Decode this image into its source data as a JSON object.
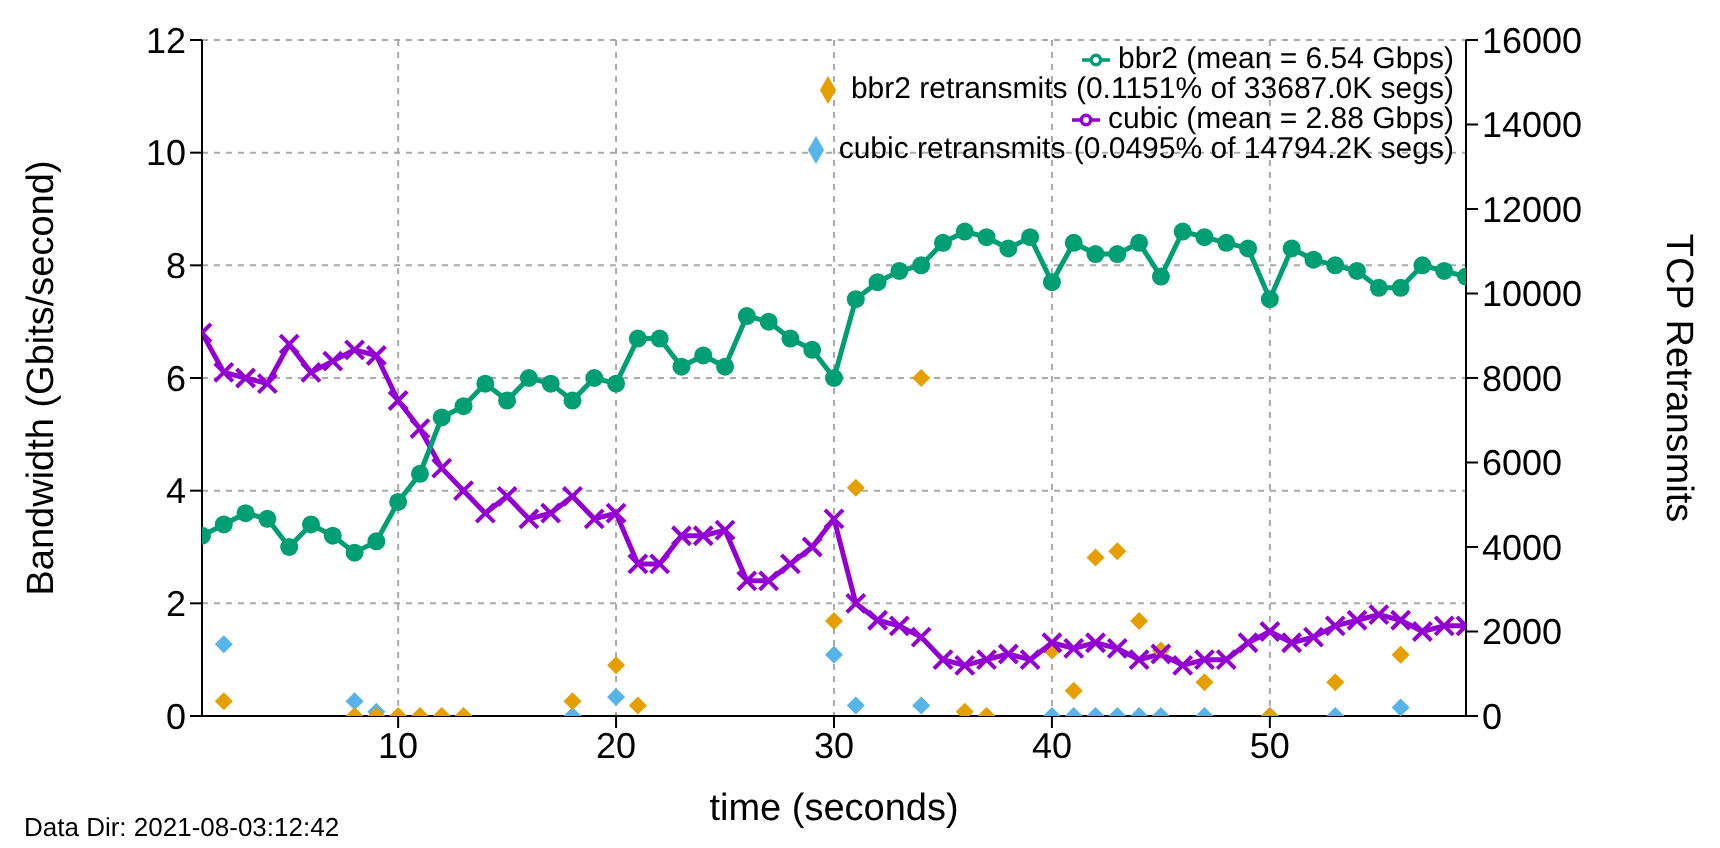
{
  "chart_data": {
    "type": "line",
    "xlabel": "time (seconds)",
    "ylabel": "Bandwidth (Gbits/second)",
    "y2label": "TCP Retransmits",
    "x": [
      1,
      2,
      3,
      4,
      5,
      6,
      7,
      8,
      9,
      10,
      11,
      12,
      13,
      14,
      15,
      16,
      17,
      18,
      19,
      20,
      21,
      22,
      23,
      24,
      25,
      26,
      27,
      28,
      29,
      30,
      31,
      32,
      33,
      34,
      35,
      36,
      37,
      38,
      39,
      40,
      41,
      42,
      43,
      44,
      45,
      46,
      47,
      48,
      49,
      50,
      51,
      52,
      53,
      54,
      55,
      56,
      57,
      58,
      59
    ],
    "series": [
      {
        "name": "cubic (mean = 2.88 Gbps)",
        "color": "#9400d3",
        "marker": "cross",
        "values": [
          6.8,
          6.1,
          6.0,
          5.9,
          6.6,
          6.1,
          6.3,
          6.5,
          6.4,
          5.6,
          5.1,
          4.4,
          4.0,
          3.6,
          3.9,
          3.5,
          3.6,
          3.9,
          3.5,
          3.6,
          2.7,
          2.7,
          3.2,
          3.2,
          3.3,
          2.4,
          2.4,
          2.7,
          3.0,
          3.5,
          2.0,
          1.7,
          1.6,
          1.4,
          1.0,
          0.9,
          1.0,
          1.1,
          1.0,
          1.3,
          1.2,
          1.3,
          1.2,
          1.0,
          1.1,
          0.9,
          1.0,
          1.0,
          1.3,
          1.5,
          1.3,
          1.4,
          1.6,
          1.7,
          1.8,
          1.7,
          1.5,
          1.6,
          1.6
        ]
      },
      {
        "name": "bbr2 (mean = 6.54 Gbps)",
        "color": "#009e73",
        "marker": "circle",
        "values": [
          3.2,
          3.4,
          3.6,
          3.5,
          3.0,
          3.4,
          3.2,
          2.9,
          3.1,
          3.8,
          4.3,
          5.3,
          5.5,
          5.9,
          5.6,
          6.0,
          5.9,
          5.6,
          6.0,
          5.9,
          6.7,
          6.7,
          6.2,
          6.4,
          6.2,
          7.1,
          7.0,
          6.7,
          6.5,
          6.0,
          7.4,
          7.7,
          7.9,
          8.0,
          8.4,
          8.6,
          8.5,
          8.3,
          8.5,
          7.7,
          8.4,
          8.2,
          8.2,
          8.4,
          7.8,
          8.6,
          8.5,
          8.4,
          8.3,
          7.4,
          8.3,
          8.1,
          8.0,
          7.9,
          7.6,
          7.6,
          8.0,
          7.9,
          7.8
        ]
      },
      {
        "name": "cubic retransmits (0.0495% of 14794.2K segs)",
        "type": "scatter",
        "axis": "y2",
        "color": "#56b4e9",
        "marker": "diamond",
        "x": [
          2,
          8,
          9,
          18,
          20,
          30,
          31,
          34,
          40,
          41,
          42,
          43,
          44,
          45,
          47,
          50,
          53,
          56
        ],
        "values": [
          1700,
          350,
          100,
          0,
          450,
          1450,
          250,
          250,
          0,
          0,
          0,
          0,
          0,
          0,
          0,
          0,
          0,
          200
        ]
      },
      {
        "name": "bbr2 retransmits (0.1151% of 33687.0K segs)",
        "type": "scatter",
        "axis": "y2",
        "color": "#e69f00",
        "marker": "diamond",
        "x": [
          2,
          8,
          9,
          10,
          11,
          12,
          13,
          18,
          20,
          21,
          30,
          31,
          34,
          36,
          37,
          40,
          41,
          42,
          43,
          44,
          45,
          47,
          50,
          53,
          56
        ],
        "values": [
          350,
          0,
          0,
          0,
          0,
          0,
          0,
          350,
          1200,
          250,
          2250,
          5400,
          8000,
          100,
          0,
          1550,
          600,
          3750,
          3900,
          2250,
          1550,
          800,
          0,
          800,
          1450
        ]
      }
    ],
    "xlim": [
      1,
      59
    ],
    "xticks": [
      10,
      20,
      30,
      40,
      50
    ],
    "ylim": [
      0,
      12
    ],
    "yticks": [
      0,
      2,
      4,
      6,
      8,
      10,
      12
    ],
    "y2lim": [
      0,
      16000
    ],
    "y2ticks": [
      0,
      2000,
      4000,
      6000,
      8000,
      10000,
      12000,
      14000,
      16000
    ],
    "grid": true,
    "legend": "top right",
    "annotations": [
      "Data Dir: 2021-08-03:12:42"
    ]
  }
}
